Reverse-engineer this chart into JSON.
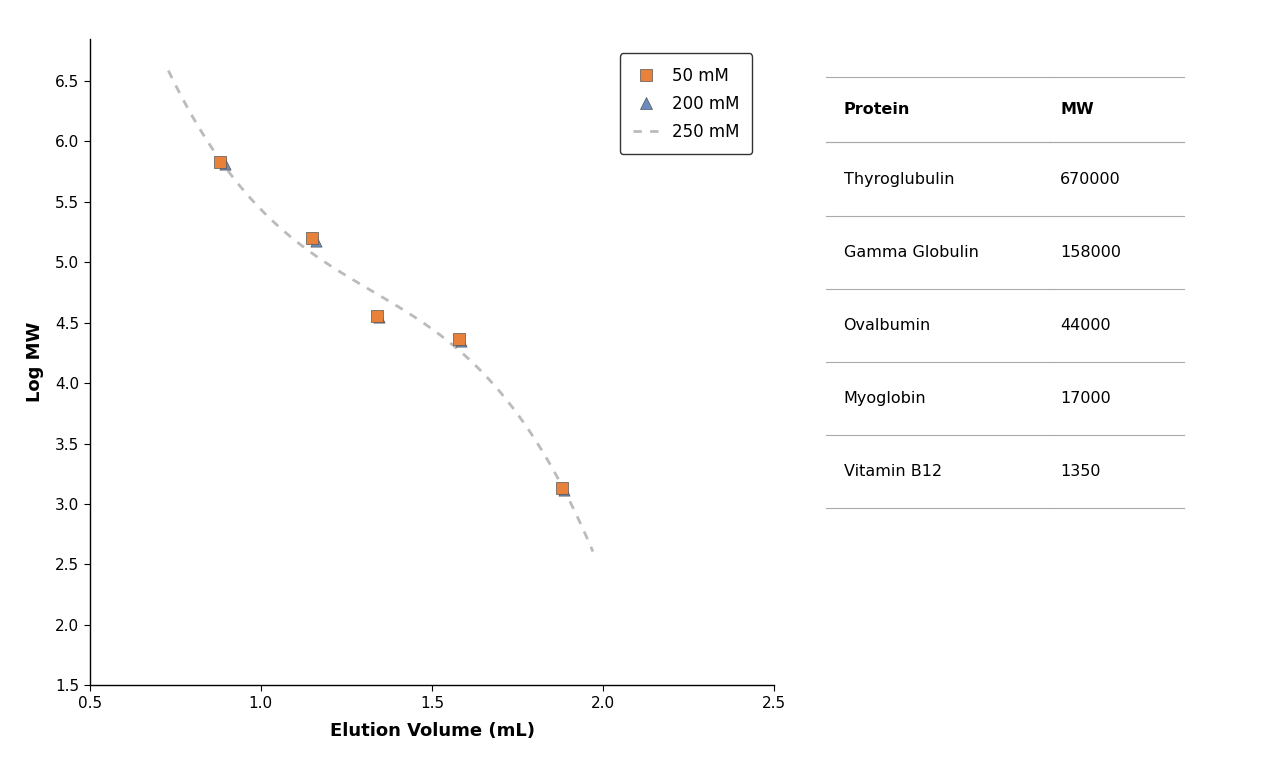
{
  "xlabel": "Elution Volume (mL)",
  "ylabel": "Log MW",
  "xlim": [
    0.5,
    2.5
  ],
  "ylim": [
    1.5,
    6.85
  ],
  "xticks": [
    0.5,
    1.0,
    1.5,
    2.0,
    2.5
  ],
  "yticks": [
    1.5,
    2.0,
    2.5,
    3.0,
    3.5,
    4.0,
    4.5,
    5.0,
    5.5,
    6.0,
    6.5
  ],
  "series_50mM": {
    "x": [
      0.88,
      1.15,
      1.34,
      1.58,
      1.88
    ],
    "y": [
      5.826,
      5.199,
      4.557,
      4.362,
      3.13
    ],
    "color": "#E8823A",
    "marker": "s",
    "label": "50 mM",
    "size": 65
  },
  "series_200mM": {
    "x": [
      0.895,
      1.16,
      1.345,
      1.585,
      1.885
    ],
    "y": [
      5.808,
      5.179,
      4.543,
      4.35,
      3.114
    ],
    "color": "#6B8CBF",
    "marker": "^",
    "label": "200 mM",
    "size": 65
  },
  "curve_250mM": {
    "x_start": 0.73,
    "x_end": 1.97,
    "color": "#BBBBBB",
    "label": "250 mM"
  },
  "table": {
    "header": [
      "Protein",
      "MW"
    ],
    "rows": [
      [
        "Thyroglubulin",
        "670000"
      ],
      [
        "Gamma Globulin",
        "158000"
      ],
      [
        "Ovalbumin",
        "44000"
      ],
      [
        "Myoglobin",
        "17000"
      ],
      [
        "Vitamin B12",
        "1350"
      ]
    ],
    "header_bg": "#C8DCF0",
    "border_color": "#AAAAAA"
  },
  "background_color": "#FFFFFF"
}
